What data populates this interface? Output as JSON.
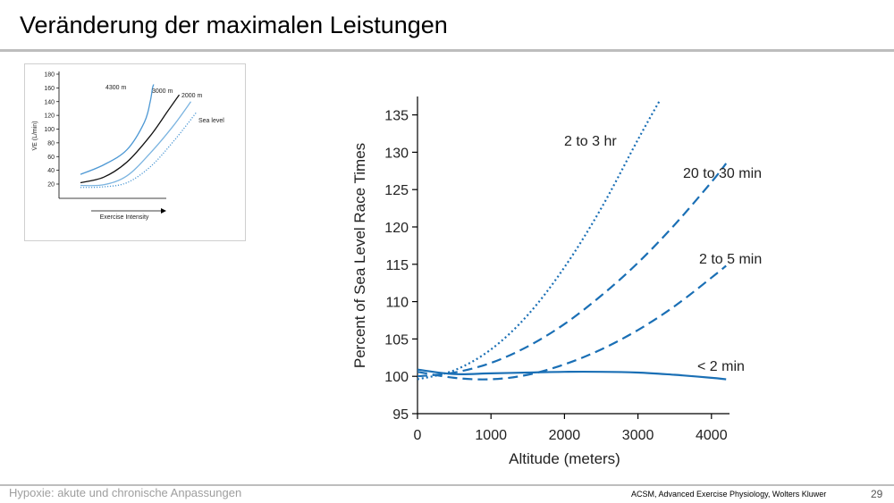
{
  "slide": {
    "title": "Veränderung der maximalen Leistungen",
    "footer_left": "Hypoxie: akute und chronische Anpassungen",
    "source": "ACSM, Advanced Exercise Physiology, Wolters Kluwer",
    "page_number": "29"
  },
  "colors": {
    "main_blue": "#1a6fb5",
    "light_blue": "#7bb4e0",
    "mid_blue": "#4d98d4",
    "black": "#111111"
  },
  "chart_data": [
    {
      "type": "line",
      "title": "",
      "xlabel": "Exercise Intensity",
      "ylabel": "V̇E (L/min)",
      "ylim": [
        0,
        180
      ],
      "yticks": [
        20,
        40,
        60,
        80,
        100,
        120,
        140,
        160,
        180
      ],
      "xlim": [
        0,
        100
      ],
      "series": [
        {
          "name": "4300 m",
          "color": "#4d98d4",
          "dash": "solid",
          "x": [
            0,
            20,
            40,
            55,
            60,
            62,
            63
          ],
          "y": [
            34,
            48,
            70,
            110,
            140,
            160,
            165
          ]
        },
        {
          "name": "3000 m",
          "color": "#111111",
          "dash": "solid",
          "x": [
            0,
            20,
            40,
            60,
            75,
            85
          ],
          "y": [
            22,
            30,
            52,
            90,
            126,
            150
          ]
        },
        {
          "name": "2000 m",
          "color": "#7bb4e0",
          "dash": "solid",
          "x": [
            0,
            20,
            40,
            60,
            80,
            95
          ],
          "y": [
            18,
            19,
            32,
            65,
            105,
            140
          ]
        },
        {
          "name": "Sea level",
          "color": "#4d98d4",
          "dash": "dotted",
          "x": [
            0,
            20,
            40,
            60,
            80,
            100
          ],
          "y": [
            15,
            16,
            22,
            45,
            82,
            125
          ]
        }
      ]
    },
    {
      "type": "line",
      "title": "",
      "xlabel": "Altitude (meters)",
      "ylabel": "Percent of Sea Level Race Times",
      "xlim": [
        0,
        4250
      ],
      "ylim": [
        95,
        137
      ],
      "xticks": [
        0,
        1000,
        2000,
        3000,
        4000
      ],
      "yticks": [
        95,
        100,
        105,
        110,
        115,
        120,
        125,
        130,
        135
      ],
      "grid": false,
      "series": [
        {
          "name": "2 to 3 hr",
          "dash": "dotted",
          "x": [
            0,
            500,
            1000,
            1500,
            2000,
            2500,
            3000,
            3300
          ],
          "y": [
            99.6,
            100.8,
            103.6,
            108.2,
            114.6,
            122.5,
            131.7,
            137
          ]
        },
        {
          "name": "20 to 30 min",
          "dash": "dashed",
          "x": [
            0,
            500,
            1000,
            1500,
            2000,
            2500,
            3000,
            3500,
            4000,
            4200
          ],
          "y": [
            100,
            100.5,
            101.8,
            104,
            107,
            110.8,
            115.2,
            120.3,
            126,
            128.5
          ]
        },
        {
          "name": "2 to 5 min",
          "dash": "dashed",
          "x": [
            0,
            500,
            1000,
            1500,
            2000,
            2500,
            3000,
            3500,
            4000,
            4200
          ],
          "y": [
            100.6,
            99.8,
            99.6,
            100.2,
            101.6,
            103.6,
            106.2,
            109.4,
            113.2,
            114.8
          ]
        },
        {
          "name": "< 2 min",
          "dash": "solid",
          "x": [
            0,
            500,
            1000,
            1500,
            2000,
            2500,
            3000,
            3500,
            4000,
            4200
          ],
          "y": [
            100.9,
            100.3,
            100.4,
            100.5,
            100.6,
            100.6,
            100.5,
            100.2,
            99.8,
            99.6
          ]
        }
      ]
    }
  ]
}
